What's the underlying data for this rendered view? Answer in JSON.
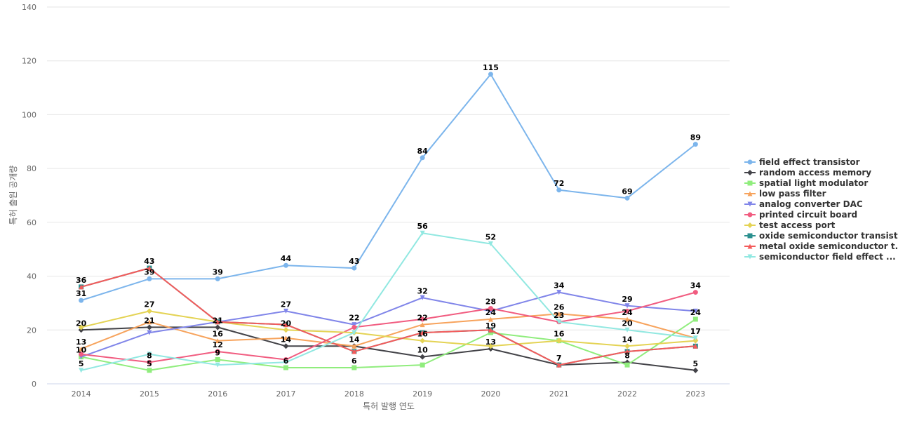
{
  "chart_data": {
    "type": "line",
    "title": "",
    "xlabel": "특허 발행 연도",
    "ylabel": "특허 출원 공개량",
    "ylim": [
      0,
      140
    ],
    "yticks": [
      0,
      20,
      40,
      60,
      80,
      100,
      120,
      140
    ],
    "grid": true,
    "legend_position": "right",
    "categories": [
      "2014",
      "2015",
      "2016",
      "2017",
      "2018",
      "2019",
      "2020",
      "2021",
      "2022",
      "2023"
    ],
    "series": [
      {
        "name": "field effect transistor",
        "color": "#7cb5ec",
        "marker": "circle",
        "values": [
          31,
          39,
          39,
          44,
          43,
          84,
          115,
          72,
          69,
          89
        ]
      },
      {
        "name": "random access memory",
        "color": "#434348",
        "marker": "diamond",
        "values": [
          20,
          21,
          21,
          14,
          14,
          10,
          13,
          7,
          8,
          5
        ]
      },
      {
        "name": "spatial light modulator",
        "color": "#90ed7d",
        "marker": "square",
        "values": [
          10,
          5,
          9,
          6,
          6,
          7,
          19,
          16,
          7,
          24
        ]
      },
      {
        "name": "low pass filter",
        "color": "#f7a35c",
        "marker": "triangle",
        "values": [
          13,
          23,
          16,
          17,
          14,
          22,
          24,
          26,
          24,
          17
        ]
      },
      {
        "name": "analog converter DAC",
        "color": "#8085e9",
        "marker": "triangle-down",
        "values": [
          10,
          19,
          23,
          27,
          22,
          32,
          27,
          34,
          29,
          27
        ]
      },
      {
        "name": "printed circuit board",
        "color": "#f15c80",
        "marker": "circle",
        "values": [
          11,
          8,
          12,
          9,
          21,
          24,
          28,
          23,
          27,
          34
        ]
      },
      {
        "name": "test access port",
        "color": "#e4d354",
        "marker": "diamond",
        "values": [
          21,
          27,
          23,
          20,
          19,
          16,
          14,
          16,
          14,
          16
        ]
      },
      {
        "name": "oxide semiconductor transistor",
        "color": "#2b908f",
        "marker": "square",
        "values": [
          36,
          43,
          23,
          22,
          12,
          19,
          20,
          7,
          12,
          14
        ]
      },
      {
        "name": "metal oxide semiconductor t...",
        "color": "#f45b5b",
        "marker": "triangle",
        "values": [
          36,
          43,
          23,
          22,
          12,
          19,
          20,
          7,
          12,
          14
        ]
      },
      {
        "name": "semiconductor field effect ...",
        "color": "#91e8e1",
        "marker": "triangle-down",
        "values": [
          5,
          11,
          7,
          8,
          19,
          56,
          52,
          23,
          20,
          17
        ]
      }
    ],
    "data_labels": [
      {
        "category": "2014",
        "values": [
          36,
          31,
          20,
          13,
          10,
          5
        ]
      },
      {
        "category": "2015",
        "values": [
          43,
          39,
          27,
          21,
          8,
          5
        ]
      },
      {
        "category": "2016",
        "values": [
          39,
          21,
          16,
          12,
          9
        ]
      },
      {
        "category": "2017",
        "values": [
          44,
          27,
          20,
          14,
          6
        ]
      },
      {
        "category": "2018",
        "values": [
          43,
          22,
          14,
          6
        ]
      },
      {
        "category": "2019",
        "values": [
          84,
          56,
          32,
          22,
          16,
          10
        ]
      },
      {
        "category": "2020",
        "values": [
          115,
          52,
          28,
          24,
          19,
          13
        ]
      },
      {
        "category": "2021",
        "values": [
          72,
          34,
          26,
          23,
          16,
          7
        ]
      },
      {
        "category": "2022",
        "values": [
          69,
          29,
          24,
          20,
          14,
          8
        ]
      },
      {
        "category": "2023",
        "values": [
          89,
          34,
          24,
          17,
          5
        ]
      }
    ]
  }
}
